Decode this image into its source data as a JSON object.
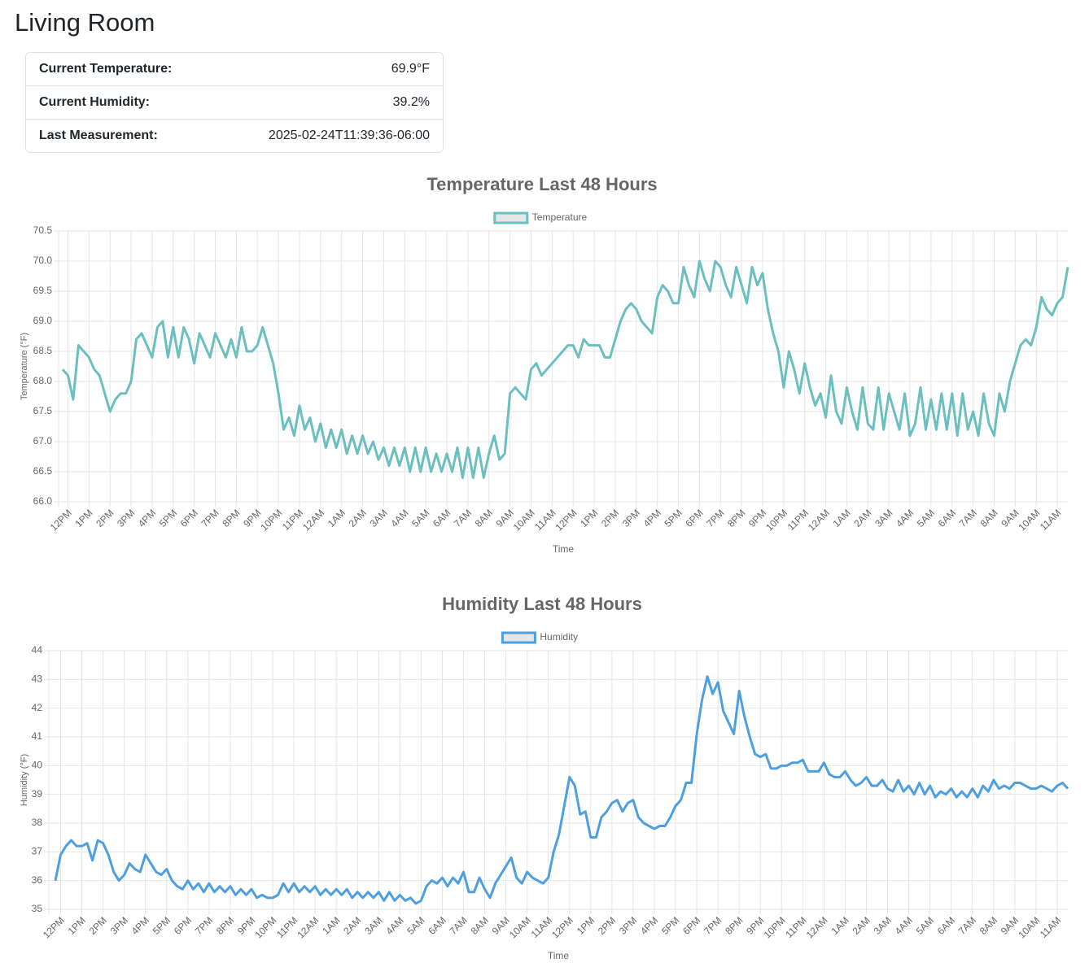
{
  "header": {
    "title": "Living Room"
  },
  "summary": {
    "rows": [
      [
        "Current Temperature:",
        "69.9°F"
      ],
      [
        "Current Humidity:",
        "39.2%"
      ],
      [
        "Last Measurement:",
        "2025-02-24T11:39:36-06:00"
      ]
    ]
  },
  "chart_data": [
    {
      "type": "line",
      "title": "Temperature Last 48 Hours",
      "x_label": "Time",
      "y_label": "Temperature (°F)",
      "grid": true,
      "legend": "top",
      "ylim": [
        66,
        70.5
      ],
      "yticks": [
        {
          "value": 66,
          "label": "66.0"
        },
        66.5,
        {
          "value": 67,
          "label": "67.0"
        },
        67.5,
        {
          "value": 68,
          "label": "68.0"
        },
        68.5,
        {
          "value": 69,
          "label": "69.0"
        },
        69.5,
        {
          "value": 70,
          "label": "70.0"
        },
        70.5
      ],
      "categories": [
        null,
        "12PM",
        null,
        null,
        null,
        "1PM",
        null,
        null,
        null,
        "2PM",
        null,
        null,
        null,
        "3PM",
        null,
        null,
        null,
        "4PM",
        null,
        null,
        null,
        "5PM",
        null,
        null,
        null,
        "6PM",
        null,
        null,
        null,
        "7PM",
        null,
        null,
        null,
        "8PM",
        null,
        null,
        null,
        "9PM",
        null,
        null,
        null,
        "10PM",
        null,
        null,
        null,
        "11PM",
        null,
        null,
        null,
        "12AM",
        null,
        null,
        null,
        "1AM",
        null,
        null,
        null,
        "2AM",
        null,
        null,
        null,
        "3AM",
        null,
        null,
        null,
        "4AM",
        null,
        null,
        null,
        "5AM",
        null,
        null,
        null,
        "6AM",
        null,
        null,
        null,
        "7AM",
        null,
        null,
        null,
        "8AM",
        null,
        null,
        null,
        "9AM",
        null,
        null,
        null,
        "10AM",
        null,
        null,
        null,
        "11AM",
        null,
        null,
        null,
        "12PM",
        null,
        null,
        null,
        "1PM",
        null,
        null,
        null,
        "2PM",
        null,
        null,
        null,
        "3PM",
        null,
        null,
        null,
        "4PM",
        null,
        null,
        null,
        "5PM",
        null,
        null,
        null,
        "6PM",
        null,
        null,
        null,
        "7PM",
        null,
        null,
        null,
        "8PM",
        null,
        null,
        null,
        "9PM",
        null,
        null,
        null,
        "10PM",
        null,
        null,
        null,
        "11PM",
        null,
        null,
        null,
        "12AM",
        null,
        null,
        null,
        "1AM",
        null,
        null,
        null,
        "2AM",
        null,
        null,
        null,
        "3AM",
        null,
        null,
        null,
        "4AM",
        null,
        null,
        null,
        "5AM",
        null,
        null,
        null,
        "6AM",
        null,
        null,
        null,
        "7AM",
        null,
        null,
        null,
        "8AM",
        null,
        null,
        null,
        "9AM",
        null,
        null,
        null,
        "10AM",
        null,
        null,
        null,
        "11AM",
        null,
        null
      ],
      "series": [
        {
          "name": "Temperature",
          "color": "#6bbfbf",
          "values": [
            68.2,
            68.1,
            67.7,
            68.6,
            68.5,
            68.4,
            68.2,
            68.1,
            67.8,
            67.5,
            67.7,
            67.8,
            67.8,
            68.0,
            68.7,
            68.8,
            68.6,
            68.4,
            68.9,
            69.0,
            68.4,
            68.9,
            68.4,
            68.9,
            68.7,
            68.3,
            68.8,
            68.6,
            68.4,
            68.8,
            68.6,
            68.4,
            68.7,
            68.4,
            68.9,
            68.5,
            68.5,
            68.6,
            68.9,
            68.6,
            68.3,
            67.8,
            67.2,
            67.4,
            67.1,
            67.6,
            67.2,
            67.4,
            67.0,
            67.3,
            66.9,
            67.2,
            66.9,
            67.2,
            66.8,
            67.1,
            66.8,
            67.1,
            66.8,
            67.0,
            66.7,
            66.9,
            66.6,
            66.9,
            66.6,
            66.9,
            66.5,
            66.9,
            66.5,
            66.9,
            66.5,
            66.8,
            66.5,
            66.8,
            66.5,
            66.9,
            66.4,
            66.9,
            66.4,
            66.9,
            66.4,
            66.8,
            67.1,
            66.7,
            66.8,
            67.8,
            67.9,
            67.8,
            67.7,
            68.2,
            68.3,
            68.1,
            68.2,
            68.3,
            68.4,
            68.5,
            68.6,
            68.6,
            68.4,
            68.7,
            68.6,
            68.6,
            68.6,
            68.4,
            68.4,
            68.7,
            69.0,
            69.2,
            69.3,
            69.2,
            69.0,
            68.9,
            68.8,
            69.4,
            69.6,
            69.5,
            69.3,
            69.3,
            69.9,
            69.6,
            69.4,
            70.0,
            69.7,
            69.5,
            70.0,
            69.9,
            69.6,
            69.4,
            69.9,
            69.6,
            69.3,
            69.9,
            69.6,
            69.8,
            69.2,
            68.8,
            68.5,
            67.9,
            68.5,
            68.2,
            67.8,
            68.3,
            67.9,
            67.6,
            67.8,
            67.4,
            68.1,
            67.5,
            67.3,
            67.9,
            67.5,
            67.2,
            67.9,
            67.3,
            67.2,
            67.9,
            67.2,
            67.8,
            67.5,
            67.2,
            67.8,
            67.1,
            67.3,
            67.9,
            67.2,
            67.7,
            67.2,
            67.8,
            67.2,
            67.8,
            67.1,
            67.8,
            67.2,
            67.5,
            67.1,
            67.8,
            67.3,
            67.1,
            67.8,
            67.5,
            68.0,
            68.3,
            68.6,
            68.7,
            68.6,
            68.9,
            69.4,
            69.2,
            69.1,
            69.3,
            69.4,
            69.9
          ]
        }
      ]
    },
    {
      "type": "line",
      "title": "Humidity Last 48 Hours",
      "x_label": "Time",
      "y_label": "Humidity (°F)",
      "grid": true,
      "legend": "top",
      "ylim": [
        35,
        44
      ],
      "yticks": [
        35,
        36,
        37,
        38,
        39,
        40,
        41,
        42,
        43,
        44
      ],
      "categories": [
        null,
        "12PM",
        null,
        null,
        null,
        "1PM",
        null,
        null,
        null,
        "2PM",
        null,
        null,
        null,
        "3PM",
        null,
        null,
        null,
        "4PM",
        null,
        null,
        null,
        "5PM",
        null,
        null,
        null,
        "6PM",
        null,
        null,
        null,
        "7PM",
        null,
        null,
        null,
        "8PM",
        null,
        null,
        null,
        "9PM",
        null,
        null,
        null,
        "10PM",
        null,
        null,
        null,
        "11PM",
        null,
        null,
        null,
        "12AM",
        null,
        null,
        null,
        "1AM",
        null,
        null,
        null,
        "2AM",
        null,
        null,
        null,
        "3AM",
        null,
        null,
        null,
        "4AM",
        null,
        null,
        null,
        "5AM",
        null,
        null,
        null,
        "6AM",
        null,
        null,
        null,
        "7AM",
        null,
        null,
        null,
        "8AM",
        null,
        null,
        null,
        "9AM",
        null,
        null,
        null,
        "10AM",
        null,
        null,
        null,
        "11AM",
        null,
        null,
        null,
        "12PM",
        null,
        null,
        null,
        "1PM",
        null,
        null,
        null,
        "2PM",
        null,
        null,
        null,
        "3PM",
        null,
        null,
        null,
        "4PM",
        null,
        null,
        null,
        "5PM",
        null,
        null,
        null,
        "6PM",
        null,
        null,
        null,
        "7PM",
        null,
        null,
        null,
        "8PM",
        null,
        null,
        null,
        "9PM",
        null,
        null,
        null,
        "10PM",
        null,
        null,
        null,
        "11PM",
        null,
        null,
        null,
        "12AM",
        null,
        null,
        null,
        "1AM",
        null,
        null,
        null,
        "2AM",
        null,
        null,
        null,
        "3AM",
        null,
        null,
        null,
        "4AM",
        null,
        null,
        null,
        "5AM",
        null,
        null,
        null,
        "6AM",
        null,
        null,
        null,
        "7AM",
        null,
        null,
        null,
        "8AM",
        null,
        null,
        null,
        "9AM",
        null,
        null,
        null,
        "10AM",
        null,
        null,
        null,
        "11AM",
        null,
        null
      ],
      "series": [
        {
          "name": "Humidity",
          "color": "#4e9fe0",
          "values": [
            36.0,
            36.9,
            37.2,
            37.4,
            37.2,
            37.2,
            37.3,
            36.7,
            37.4,
            37.3,
            36.9,
            36.3,
            36.0,
            36.2,
            36.6,
            36.4,
            36.3,
            36.9,
            36.6,
            36.3,
            36.2,
            36.4,
            36.0,
            35.8,
            35.7,
            36.0,
            35.7,
            35.9,
            35.6,
            35.9,
            35.6,
            35.8,
            35.6,
            35.8,
            35.5,
            35.7,
            35.5,
            35.7,
            35.4,
            35.5,
            35.4,
            35.4,
            35.5,
            35.9,
            35.6,
            35.9,
            35.6,
            35.8,
            35.6,
            35.8,
            35.5,
            35.7,
            35.5,
            35.7,
            35.5,
            35.7,
            35.4,
            35.6,
            35.4,
            35.6,
            35.4,
            35.6,
            35.3,
            35.6,
            35.3,
            35.5,
            35.3,
            35.4,
            35.2,
            35.3,
            35.8,
            36.0,
            35.9,
            36.1,
            35.8,
            36.1,
            35.9,
            36.3,
            35.6,
            35.6,
            36.1,
            35.7,
            35.4,
            35.9,
            36.2,
            36.5,
            36.8,
            36.1,
            35.9,
            36.3,
            36.1,
            36.0,
            35.9,
            36.1,
            37.0,
            37.6,
            38.6,
            39.6,
            39.3,
            38.3,
            38.4,
            37.5,
            37.5,
            38.2,
            38.4,
            38.7,
            38.8,
            38.4,
            38.7,
            38.8,
            38.2,
            38.0,
            37.9,
            37.8,
            37.9,
            37.9,
            38.2,
            38.6,
            38.8,
            39.4,
            39.4,
            41.1,
            42.3,
            43.1,
            42.5,
            42.9,
            41.9,
            41.5,
            41.1,
            42.6,
            41.7,
            41.0,
            40.4,
            40.3,
            40.4,
            39.9,
            39.9,
            40.0,
            40.0,
            40.1,
            40.1,
            40.2,
            39.8,
            39.8,
            39.8,
            40.1,
            39.7,
            39.6,
            39.6,
            39.8,
            39.5,
            39.3,
            39.4,
            39.6,
            39.3,
            39.3,
            39.5,
            39.2,
            39.1,
            39.5,
            39.1,
            39.3,
            39.0,
            39.4,
            39.0,
            39.3,
            38.9,
            39.1,
            39.0,
            39.2,
            38.9,
            39.1,
            38.9,
            39.2,
            38.9,
            39.3,
            39.1,
            39.5,
            39.2,
            39.3,
            39.2,
            39.4,
            39.4,
            39.3,
            39.2,
            39.2,
            39.3,
            39.2,
            39.1,
            39.3,
            39.4,
            39.2
          ]
        }
      ]
    }
  ]
}
